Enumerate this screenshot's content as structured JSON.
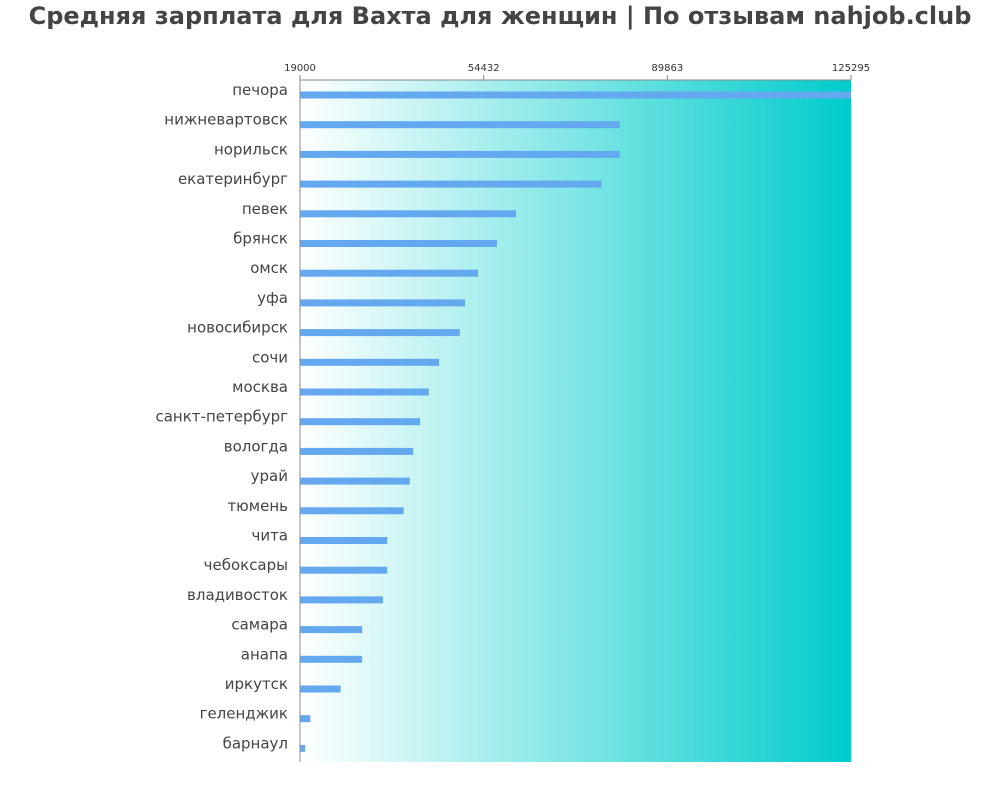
{
  "chart_data": {
    "type": "bar",
    "orientation": "horizontal",
    "title": "Средняя зарплата для Вахта для женщин | По отзывам nahjob.club",
    "xlim": [
      19000,
      125295
    ],
    "ticks": [
      19000,
      54432,
      89863,
      125295
    ],
    "tick_labels": [
      "19000",
      "54432",
      "89863",
      "125295"
    ],
    "categories": [
      "печора",
      "нижневартовск",
      "норильск",
      "екатеринбург",
      "певек",
      "брянск",
      "омск",
      "уфа",
      "новосибирск",
      "сочи",
      "москва",
      "санкт-петербург",
      "вологда",
      "урай",
      "тюмень",
      "чита",
      "чебоксары",
      "владивосток",
      "самара",
      "анапа",
      "иркутск",
      "геленджик",
      "барнаул"
    ],
    "values": [
      125295,
      80667,
      80667,
      77167,
      60667,
      57000,
      53333,
      50833,
      49833,
      45833,
      43833,
      42167,
      40833,
      40167,
      39000,
      35833,
      35833,
      35000,
      31000,
      31000,
      26833,
      21000,
      20000
    ],
    "bar_color": "#64a8ef",
    "background_gradient": [
      "#ffffff",
      "#00cccc"
    ],
    "grid": false
  }
}
